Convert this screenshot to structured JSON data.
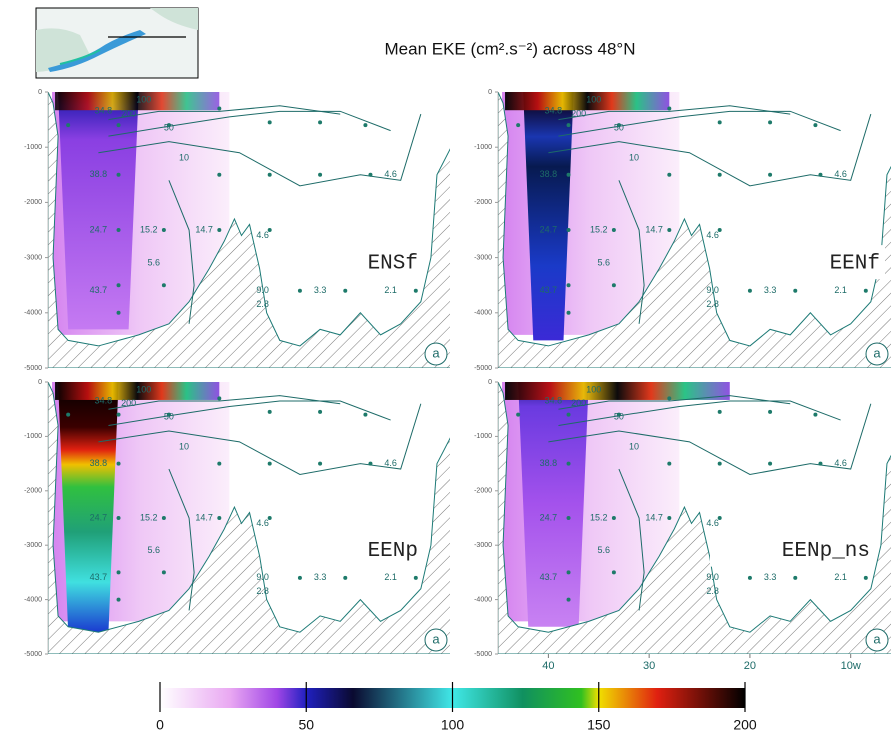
{
  "title": "Mean EKE (cm².s⁻²) across 48°N",
  "station_labels": [
    "34.8",
    "38.8",
    "24.7",
    "43.7",
    "15.2",
    "5.6",
    "14.7",
    "4.6",
    "9.0",
    "2.8",
    "3.3",
    "2.1",
    "4.6"
  ],
  "contour_labels": [
    "200",
    "100",
    "50",
    "10"
  ],
  "chart_data": [
    {
      "type": "section",
      "label": "ENSf",
      "tag": "a",
      "xlim": [
        45,
        6
      ],
      "ylim": [
        -5000,
        0
      ],
      "yticks": [
        0,
        -1000,
        -2000,
        -3000,
        -4000,
        -5000
      ]
    },
    {
      "type": "section",
      "label": "EENf",
      "tag": "a",
      "xlim": [
        45,
        6
      ],
      "ylim": [
        -5000,
        0
      ],
      "yticks": [
        0,
        -1000,
        -2000,
        -3000,
        -4000,
        -5000
      ]
    },
    {
      "type": "section",
      "label": "EENp",
      "tag": "a",
      "xlim": [
        45,
        6
      ],
      "ylim": [
        -5000,
        0
      ],
      "yticks": [
        0,
        -1000,
        -2000,
        -3000,
        -4000,
        -5000
      ]
    },
    {
      "type": "section",
      "label": "EENp_ns",
      "tag": "a",
      "xlim": [
        45,
        6
      ],
      "ylim": [
        -5000,
        0
      ],
      "yticks": [
        0,
        -1000,
        -2000,
        -3000,
        -4000,
        -5000
      ],
      "xticks": [
        40,
        30,
        20,
        {
          "value": 10,
          "label": "10w"
        }
      ]
    },
    {
      "type": "colorbar",
      "xlim": [
        0,
        200
      ],
      "xticks": [
        0,
        50,
        100,
        150,
        200
      ]
    }
  ]
}
